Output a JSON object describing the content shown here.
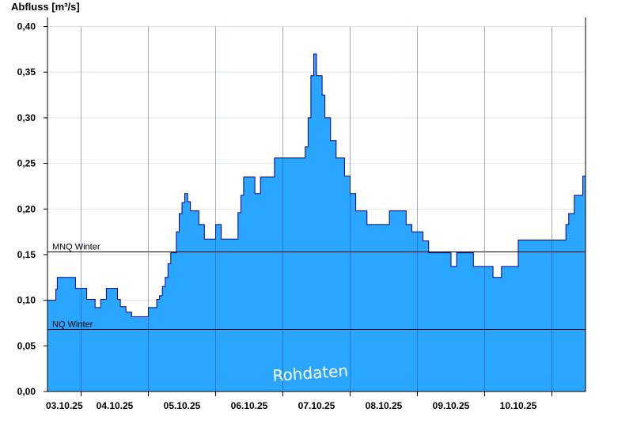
{
  "chart_data": {
    "type": "area",
    "ylabel": "Abfluss [m³/s]",
    "ylim": [
      0,
      0.41
    ],
    "yticks": [
      0,
      0.05,
      0.1,
      0.15,
      0.2,
      0.25,
      0.3,
      0.35,
      0.4
    ],
    "ytick_labels": [
      "0,00",
      "0,05",
      "0,10",
      "0,15",
      "0,20",
      "0,25",
      "0,30",
      "0,35",
      "0,40"
    ],
    "xlim": [
      "2025-10-02T12:00",
      "2025-10-10T12:00"
    ],
    "xtick_labels": [
      "03.10.25",
      "04.10.25",
      "05.10.25",
      "06.10.25",
      "07.10.25",
      "08.10.25",
      "09.10.25",
      "10.10.25"
    ],
    "day_boundaries": [
      "2025-10-03",
      "2025-10-04",
      "2025-10-05",
      "2025-10-06",
      "2025-10-07",
      "2025-10-08",
      "2025-10-09",
      "2025-10-10"
    ],
    "reference_lines": [
      {
        "name": "MNQ Winter",
        "value": 0.153
      },
      {
        "name": "NQ Winter",
        "value": 0.068
      }
    ],
    "annotation": "Rohdaten",
    "grid": "horizontal",
    "colors": {
      "fill": "#2aa6ff",
      "line": "#00008b",
      "grid": "#e4e4e4"
    },
    "series": [
      {
        "x": [
          "2025-10-02T12:00",
          "2025-10-02T14:30",
          "2025-10-02T15:00",
          "2025-10-02T15:30",
          "2025-10-02T18:00",
          "2025-10-02T22:00",
          "2025-10-03T01:00",
          "2025-10-03T02:00",
          "2025-10-03T03:00",
          "2025-10-03T03:30",
          "2025-10-03T05:00",
          "2025-10-03T07:00",
          "2025-10-03T09:00",
          "2025-10-03T10:00",
          "2025-10-03T11:00",
          "2025-10-03T13:00",
          "2025-10-03T14:00",
          "2025-10-03T16:00",
          "2025-10-03T18:00",
          "2025-10-03T20:00",
          "2025-10-03T22:00",
          "2025-10-04T00:00",
          "2025-10-04T01:00",
          "2025-10-04T02:00",
          "2025-10-04T03:00",
          "2025-10-04T04:00",
          "2025-10-04T05:00",
          "2025-10-04T06:00",
          "2025-10-04T07:00",
          "2025-10-04T08:00",
          "2025-10-04T09:00",
          "2025-10-04T10:00",
          "2025-10-04T11:00",
          "2025-10-04T12:00",
          "2025-10-04T13:00",
          "2025-10-04T14:00",
          "2025-10-04T15:00",
          "2025-10-04T16:00",
          "2025-10-04T18:00",
          "2025-10-04T20:00",
          "2025-10-04T22:00",
          "2025-10-05T00:00",
          "2025-10-05T02:00",
          "2025-10-05T05:00",
          "2025-10-05T08:00",
          "2025-10-05T09:00",
          "2025-10-05T10:00",
          "2025-10-05T12:00",
          "2025-10-05T14:00",
          "2025-10-05T16:00",
          "2025-10-05T18:00",
          "2025-10-05T21:00",
          "2025-10-06T00:00",
          "2025-10-06T03:00",
          "2025-10-06T06:00",
          "2025-10-06T08:00",
          "2025-10-06T09:00",
          "2025-10-06T10:00",
          "2025-10-06T11:00",
          "2025-10-06T12:00",
          "2025-10-06T14:00",
          "2025-10-06T15:00",
          "2025-10-06T17:00",
          "2025-10-06T19:00",
          "2025-10-06T20:00",
          "2025-10-06T22:00",
          "2025-10-07T00:00",
          "2025-10-07T02:00",
          "2025-10-07T04:00",
          "2025-10-07T06:00",
          "2025-10-07T08:00",
          "2025-10-07T10:00",
          "2025-10-07T14:00",
          "2025-10-07T16:00",
          "2025-10-07T18:00",
          "2025-10-07T20:00",
          "2025-10-07T22:00",
          "2025-10-08T02:00",
          "2025-10-08T04:00",
          "2025-10-08T06:00",
          "2025-10-08T09:00",
          "2025-10-08T10:00",
          "2025-10-08T12:00",
          "2025-10-08T14:00",
          "2025-10-08T16:00",
          "2025-10-08T18:00",
          "2025-10-08T20:00",
          "2025-10-08T22:00",
          "2025-10-09T00:00",
          "2025-10-09T02:00",
          "2025-10-09T03:00",
          "2025-10-09T05:00",
          "2025-10-09T06:00",
          "2025-10-09T08:00",
          "2025-10-09T12:00",
          "2025-10-09T16:00",
          "2025-10-09T20:00",
          "2025-10-10T00:00",
          "2025-10-10T02:00",
          "2025-10-10T03:00",
          "2025-10-10T04:00",
          "2025-10-10T05:00",
          "2025-10-10T06:00",
          "2025-10-10T08:00",
          "2025-10-10T11:00",
          "2025-10-10T12:00"
        ],
        "y": [
          0.1,
          0.1,
          0.112,
          0.125,
          0.125,
          0.113,
          0.113,
          0.101,
          0.101,
          0.101,
          0.092,
          0.101,
          0.113,
          0.113,
          0.113,
          0.101,
          0.093,
          0.087,
          0.082,
          0.082,
          0.082,
          0.092,
          0.092,
          0.092,
          0.101,
          0.105,
          0.115,
          0.125,
          0.14,
          0.152,
          0.152,
          0.175,
          0.195,
          0.207,
          0.217,
          0.208,
          0.198,
          0.198,
          0.183,
          0.167,
          0.167,
          0.183,
          0.167,
          0.167,
          0.196,
          0.215,
          0.235,
          0.235,
          0.217,
          0.235,
          0.235,
          0.256,
          0.256,
          0.256,
          0.256,
          0.268,
          0.3,
          0.346,
          0.37,
          0.346,
          0.325,
          0.3,
          0.275,
          0.256,
          0.256,
          0.236,
          0.217,
          0.198,
          0.198,
          0.183,
          0.183,
          0.183,
          0.198,
          0.198,
          0.198,
          0.183,
          0.175,
          0.165,
          0.152,
          0.152,
          0.152,
          0.152,
          0.137,
          0.152,
          0.152,
          0.152,
          0.137,
          0.137,
          0.137,
          0.137,
          0.125,
          0.125,
          0.137,
          0.137,
          0.166,
          0.166,
          0.166,
          0.166,
          0.166,
          0.166,
          0.166,
          0.183,
          0.195,
          0.215,
          0.236,
          0.217
        ]
      }
    ]
  }
}
